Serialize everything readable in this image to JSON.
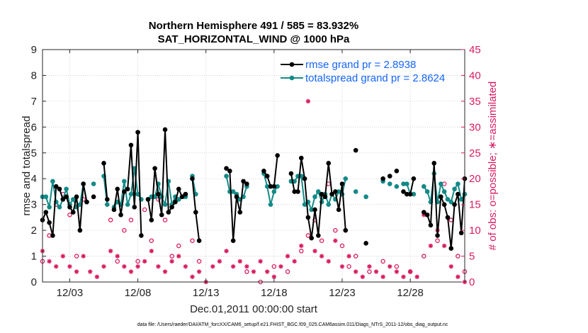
{
  "chart_data": {
    "type": "line",
    "title_line1": "Northern Hemisphere 491 / 585 = 83.932%",
    "title_line2": "SAT_HORIZONTAL_WIND @ 1000 hPa",
    "xlabel": "Dec.01,2011 00:00:00 start",
    "ylabel": "rmse and totalspread",
    "ylabel_right": "# of obs: o=possible; ∗=assimilated",
    "footer": "data file: /Users/raeder/DAI/ATM_forcXX/CAM6_setup/f.e21.FHIST_BGC.f09_025.CAM6assim.011/Diags_NTrS_2011-12/obs_diag_output.nc",
    "xlim": [
      1,
      32
    ],
    "ylim": [
      0,
      9
    ],
    "ylim_right": [
      0,
      45
    ],
    "x_ticks": [
      3,
      8,
      13,
      18,
      23,
      28
    ],
    "x_tick_labels": [
      "12/03",
      "12/08",
      "12/13",
      "12/18",
      "12/23",
      "12/28"
    ],
    "y_ticks": [
      0,
      1,
      2,
      3,
      4,
      5,
      6,
      7,
      8,
      9
    ],
    "y_ticks_right": [
      0,
      5,
      10,
      15,
      20,
      25,
      30,
      35,
      40,
      45
    ],
    "colors": {
      "rmse": "#000000",
      "spread": "#138a87",
      "obs": "#d81b60",
      "legend_text": "#1565ff"
    },
    "legend": [
      {
        "name": "rmse grand pr = 2.8938",
        "color": "#000000"
      },
      {
        "name": "totalspread grand pr = 2.8624",
        "color": "#138a87"
      }
    ],
    "series": [
      {
        "name": "rmse",
        "points": [
          [
            1.0,
            2.4
          ],
          [
            1.25,
            2.7
          ],
          [
            1.5,
            2.3
          ],
          [
            1.75,
            1.8
          ],
          [
            2.0,
            3.7
          ],
          [
            2.25,
            3.6
          ],
          [
            2.5,
            3.2
          ],
          [
            2.75,
            3.3
          ],
          [
            3.0,
            2.9
          ],
          [
            3.25,
            2.7
          ],
          [
            3.5,
            3.3
          ],
          [
            3.75,
            2.0
          ],
          [
            4.0,
            3.8
          ],
          [
            4.25,
            3.1
          ],
          [
            4.75,
            3.3
          ],
          [
            5.5,
            4.6
          ],
          [
            5.75,
            3.2
          ],
          [
            6.25,
            2.8
          ],
          [
            6.5,
            3.6
          ],
          [
            6.75,
            2.6
          ],
          [
            7.0,
            3.5
          ],
          [
            7.25,
            3.6
          ],
          [
            7.5,
            5.3
          ],
          [
            7.75,
            2.9
          ],
          [
            8.0,
            5.8
          ],
          [
            8.25,
            1.8
          ],
          [
            8.75,
            3.2
          ],
          [
            9.0,
            2.4
          ],
          [
            9.25,
            4.4
          ],
          [
            9.5,
            3.4
          ],
          [
            9.75,
            2.6
          ],
          [
            10.0,
            5.9
          ],
          [
            10.25,
            2.7
          ],
          [
            10.5,
            2.9
          ],
          [
            10.75,
            3.1
          ],
          [
            11.0,
            3.6
          ],
          [
            11.25,
            3.3
          ],
          [
            11.5,
            3.4
          ],
          [
            12.0,
            4.0
          ],
          [
            12.25,
            2.7
          ],
          [
            12.5,
            1.6
          ],
          [
            14.5,
            4.4
          ],
          [
            14.75,
            4.3
          ],
          [
            15.0,
            1.6
          ],
          [
            15.25,
            3.3
          ],
          [
            15.5,
            2.7
          ],
          [
            15.75,
            3.9
          ],
          [
            16.0,
            3.8
          ],
          [
            17.25,
            4.3
          ],
          [
            17.5,
            4.1
          ],
          [
            17.75,
            3.7
          ],
          [
            18.0,
            3.7
          ],
          [
            18.25,
            4.9
          ],
          [
            19.25,
            4.2
          ],
          [
            19.5,
            3.5
          ],
          [
            19.75,
            3.5
          ],
          [
            20.0,
            4.8
          ],
          [
            20.25,
            4.0
          ],
          [
            20.5,
            2.5
          ],
          [
            20.75,
            1.7
          ],
          [
            21.0,
            2.8
          ],
          [
            21.25,
            1.8
          ],
          [
            21.5,
            3.4
          ],
          [
            21.75,
            3.3
          ],
          [
            22.0,
            4.6
          ],
          [
            22.25,
            3.4
          ],
          [
            22.5,
            3.5
          ],
          [
            22.75,
            2.8
          ],
          [
            23.0,
            3.8
          ],
          [
            23.25,
            2.0
          ],
          [
            24.0,
            5.1
          ],
          [
            24.75,
            1.5
          ],
          [
            26.0,
            4.0
          ],
          [
            26.5,
            4.1
          ],
          [
            27.0,
            4.3
          ],
          [
            27.5,
            3.5
          ],
          [
            27.75,
            3.4
          ],
          [
            28.0,
            3.4
          ],
          [
            28.25,
            4.0
          ],
          [
            29.0,
            2.7
          ],
          [
            29.25,
            2.6
          ],
          [
            29.5,
            2.2
          ],
          [
            29.75,
            4.6
          ],
          [
            30.0,
            1.8
          ],
          [
            30.25,
            3.3
          ],
          [
            30.5,
            3.0
          ],
          [
            30.75,
            2.5
          ],
          [
            31.0,
            1.3
          ],
          [
            31.25,
            3.0
          ],
          [
            31.5,
            3.4
          ],
          [
            31.75,
            1.9
          ],
          [
            32.0,
            4.0
          ]
        ]
      },
      {
        "name": "totalspread",
        "points": [
          [
            1.0,
            3.3
          ],
          [
            1.25,
            3.3
          ],
          [
            1.5,
            2.9
          ],
          [
            1.75,
            3.9
          ],
          [
            2.0,
            3.1
          ],
          [
            2.25,
            2.9
          ],
          [
            2.5,
            3.2
          ],
          [
            2.75,
            3.6
          ],
          [
            3.0,
            3.0
          ],
          [
            3.25,
            3.2
          ],
          [
            3.5,
            2.9
          ],
          [
            3.75,
            3.0
          ],
          [
            4.0,
            3.8
          ],
          [
            4.25,
            3.1
          ],
          [
            4.75,
            3.8
          ],
          [
            5.5,
            4.1
          ],
          [
            5.75,
            3.0
          ],
          [
            6.25,
            2.9
          ],
          [
            6.5,
            3.1
          ],
          [
            6.75,
            3.0
          ],
          [
            7.0,
            3.9
          ],
          [
            7.25,
            3.0
          ],
          [
            7.5,
            3.4
          ],
          [
            7.75,
            4.4
          ],
          [
            8.0,
            3.4
          ],
          [
            8.25,
            3.2
          ],
          [
            8.75,
            3.2
          ],
          [
            9.0,
            3.3
          ],
          [
            9.25,
            3.3
          ],
          [
            9.5,
            3.8
          ],
          [
            9.75,
            3.3
          ],
          [
            10.0,
            3.0
          ],
          [
            10.25,
            3.9
          ],
          [
            10.5,
            3.0
          ],
          [
            10.75,
            3.3
          ],
          [
            11.0,
            3.2
          ],
          [
            11.25,
            3.3
          ],
          [
            11.5,
            3.3
          ],
          [
            12.0,
            4.1
          ],
          [
            12.25,
            3.4
          ],
          [
            14.5,
            4.1
          ],
          [
            14.75,
            3.5
          ],
          [
            15.0,
            3.5
          ],
          [
            15.25,
            3.4
          ],
          [
            15.5,
            3.2
          ],
          [
            15.75,
            3.3
          ],
          [
            16.0,
            3.7
          ],
          [
            17.25,
            4.2
          ],
          [
            17.5,
            3.7
          ],
          [
            17.75,
            3.0
          ],
          [
            18.0,
            3.5
          ],
          [
            18.25,
            3.7
          ],
          [
            19.25,
            3.9
          ],
          [
            19.5,
            3.9
          ],
          [
            19.75,
            4.1
          ],
          [
            20.0,
            4.1
          ],
          [
            20.25,
            3.0
          ],
          [
            20.5,
            3.1
          ],
          [
            20.75,
            2.8
          ],
          [
            21.0,
            3.3
          ],
          [
            21.25,
            3.5
          ],
          [
            21.5,
            3.1
          ],
          [
            21.75,
            3.4
          ],
          [
            22.0,
            3.0
          ],
          [
            22.25,
            3.4
          ],
          [
            22.5,
            3.2
          ],
          [
            22.75,
            3.5
          ],
          [
            23.0,
            3.4
          ],
          [
            23.25,
            4.0
          ],
          [
            24.0,
            3.5
          ],
          [
            24.75,
            3.3
          ],
          [
            26.0,
            3.9
          ],
          [
            26.5,
            3.8
          ],
          [
            27.0,
            3.7
          ],
          [
            27.5,
            3.8
          ],
          [
            27.75,
            3.8
          ],
          [
            28.0,
            3.4
          ],
          [
            28.25,
            3.4
          ],
          [
            29.0,
            3.7
          ],
          [
            29.25,
            3.5
          ],
          [
            29.5,
            3.1
          ],
          [
            29.75,
            4.2
          ],
          [
            30.0,
            3.1
          ],
          [
            30.25,
            3.8
          ],
          [
            30.5,
            3.5
          ],
          [
            30.75,
            3.2
          ],
          [
            31.0,
            3.1
          ],
          [
            31.25,
            3.6
          ],
          [
            31.5,
            3.8
          ],
          [
            31.75,
            3.2
          ],
          [
            32.0,
            3.4
          ]
        ]
      }
    ],
    "obs_possible": [
      [
        1.0,
        4
      ],
      [
        1.5,
        9
      ],
      [
        2.0,
        15
      ],
      [
        2.5,
        17
      ],
      [
        3.0,
        13
      ],
      [
        3.5,
        5
      ],
      [
        4.0,
        16
      ],
      [
        6.0,
        12
      ],
      [
        6.5,
        4
      ],
      [
        7.0,
        10
      ],
      [
        7.5,
        12
      ],
      [
        8.0,
        4
      ],
      [
        8.5,
        14
      ],
      [
        9.0,
        8
      ],
      [
        9.5,
        16
      ],
      [
        10.0,
        12
      ],
      [
        10.5,
        5
      ],
      [
        11.0,
        7
      ],
      [
        11.5,
        17
      ],
      [
        12.0,
        8
      ],
      [
        12.5,
        4
      ],
      [
        16.0,
        2
      ],
      [
        17.0,
        0
      ],
      [
        18.0,
        3
      ],
      [
        19.0,
        2
      ],
      [
        20.0,
        6
      ],
      [
        20.5,
        9
      ],
      [
        21.0,
        12
      ],
      [
        21.5,
        8
      ],
      [
        22.0,
        19
      ],
      [
        22.5,
        10
      ],
      [
        23.0,
        7
      ],
      [
        23.5,
        3
      ],
      [
        24.0,
        5
      ],
      [
        25.0,
        2
      ],
      [
        26.0,
        4
      ],
      [
        27.0,
        3
      ],
      [
        28.0,
        2
      ],
      [
        29.0,
        5
      ],
      [
        30.0,
        8
      ],
      [
        30.5,
        19
      ],
      [
        31.0,
        12
      ],
      [
        31.5,
        5
      ],
      [
        32.0,
        2
      ]
    ],
    "obs_assimilated": [
      [
        1.0,
        6
      ],
      [
        1.5,
        4
      ],
      [
        2.0,
        3
      ],
      [
        2.5,
        5
      ],
      [
        3.0,
        3
      ],
      [
        3.5,
        2
      ],
      [
        4.0,
        5
      ],
      [
        4.5,
        2
      ],
      [
        5.0,
        1
      ],
      [
        5.5,
        3
      ],
      [
        6.0,
        6
      ],
      [
        6.5,
        5
      ],
      [
        7.0,
        3
      ],
      [
        7.5,
        2
      ],
      [
        8.0,
        3
      ],
      [
        8.5,
        4
      ],
      [
        9.0,
        6
      ],
      [
        9.5,
        3
      ],
      [
        10.0,
        2
      ],
      [
        10.5,
        4
      ],
      [
        11.0,
        5
      ],
      [
        11.5,
        3
      ],
      [
        12.0,
        1
      ],
      [
        12.5,
        2
      ],
      [
        13.0,
        0
      ],
      [
        13.5,
        3
      ],
      [
        14.0,
        4
      ],
      [
        14.5,
        6
      ],
      [
        15.0,
        3
      ],
      [
        15.5,
        4
      ],
      [
        16.0,
        3
      ],
      [
        16.5,
        2
      ],
      [
        17.0,
        4
      ],
      [
        17.5,
        2
      ],
      [
        18.0,
        1
      ],
      [
        18.5,
        3
      ],
      [
        19.0,
        5
      ],
      [
        19.5,
        4
      ],
      [
        20.0,
        7
      ],
      [
        20.5,
        35
      ],
      [
        21.0,
        6
      ],
      [
        21.5,
        5
      ],
      [
        22.0,
        4
      ],
      [
        22.5,
        8
      ],
      [
        23.0,
        3
      ],
      [
        23.5,
        5
      ],
      [
        24.0,
        2
      ],
      [
        24.5,
        1
      ],
      [
        25.0,
        3
      ],
      [
        25.5,
        2
      ],
      [
        26.0,
        1
      ],
      [
        26.5,
        3
      ],
      [
        27.0,
        2
      ],
      [
        27.5,
        1
      ],
      [
        28.0,
        2
      ],
      [
        28.5,
        1
      ],
      [
        29.0,
        13
      ],
      [
        29.5,
        7
      ],
      [
        30.0,
        10
      ],
      [
        30.5,
        7
      ],
      [
        31.0,
        3
      ],
      [
        31.5,
        1
      ],
      [
        32.0,
        0
      ]
    ]
  }
}
